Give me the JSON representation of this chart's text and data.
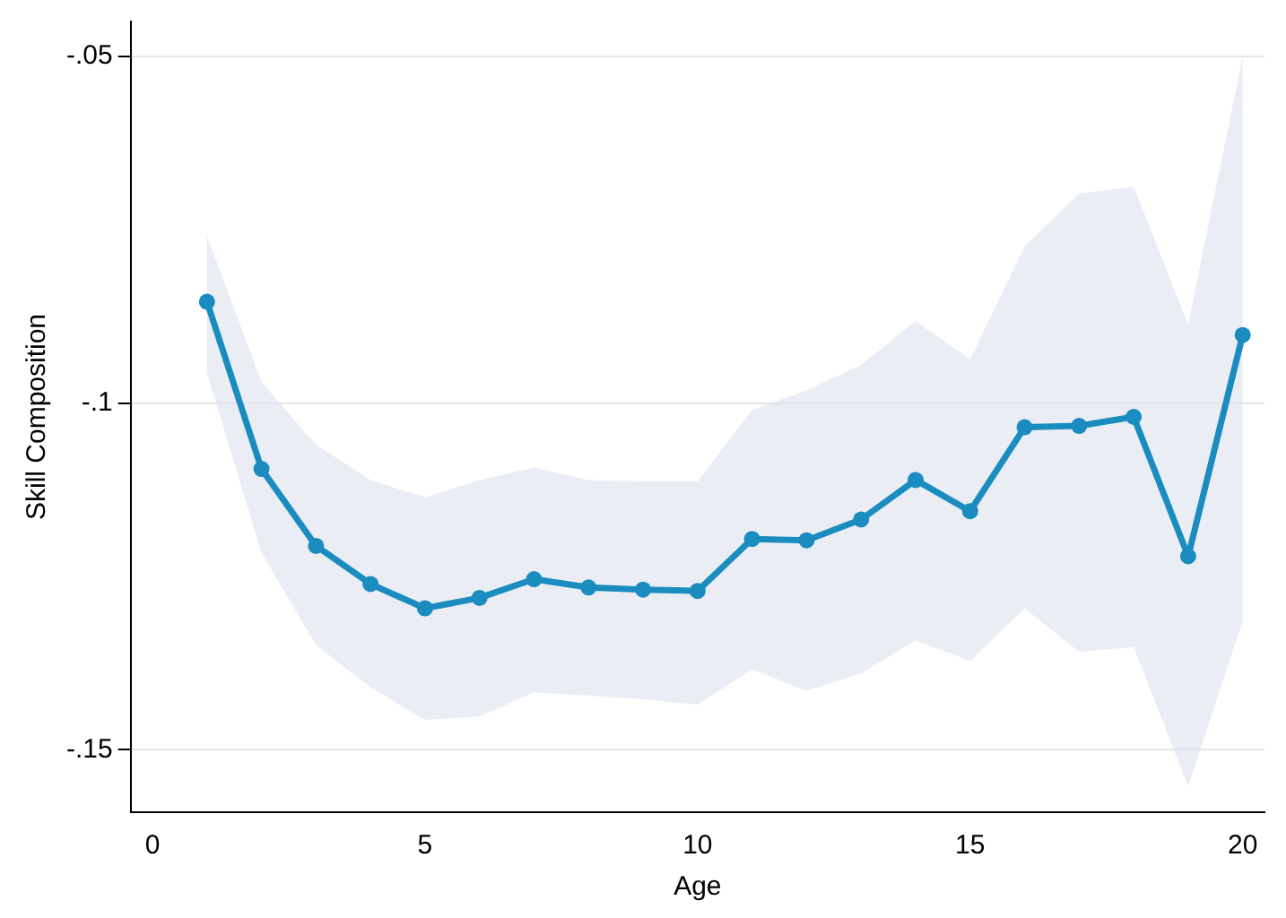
{
  "chart_data": {
    "type": "line",
    "xlabel": "Age",
    "ylabel": "Skill Composition",
    "x": [
      1,
      2,
      3,
      4,
      5,
      6,
      7,
      8,
      9,
      10,
      11,
      12,
      13,
      14,
      15,
      16,
      17,
      18,
      19,
      20
    ],
    "series": [
      {
        "color": "#1a8cc0",
        "values": [
          -0.0854,
          -0.1095,
          -0.1206,
          -0.1261,
          -0.1296,
          -0.1281,
          -0.1254,
          -0.1266,
          -0.1269,
          -0.1271,
          -0.1196,
          -0.1198,
          -0.1168,
          -0.1111,
          -0.1156,
          -0.1035,
          -0.1033,
          -0.102,
          -0.1221,
          -0.0902
        ],
        "upper": [
          -0.0759,
          -0.097,
          -0.106,
          -0.1111,
          -0.1136,
          -0.1111,
          -0.1093,
          -0.1111,
          -0.1113,
          -0.1113,
          -0.101,
          -0.0982,
          -0.0945,
          -0.0882,
          -0.0937,
          -0.0774,
          -0.0698,
          -0.0688,
          -0.0887,
          -0.05
        ],
        "lower": [
          -0.0957,
          -0.1216,
          -0.1349,
          -0.141,
          -0.1457,
          -0.1452,
          -0.1417,
          -0.1422,
          -0.1427,
          -0.1435,
          -0.1384,
          -0.1415,
          -0.139,
          -0.1342,
          -0.1372,
          -0.1296,
          -0.1359,
          -0.1352,
          -0.1553,
          -0.1314
        ]
      }
    ],
    "xlim": [
      -0.4,
      20.4
    ],
    "xticks": [
      0,
      5,
      10,
      15,
      20
    ],
    "ylim": [
      -0.159,
      -0.045
    ],
    "yticks": [
      {
        "value": -0.05,
        "label": "-.05"
      },
      {
        "value": -0.1,
        "label": "-.1"
      },
      {
        "value": -0.15,
        "label": "-.15"
      }
    ],
    "grid": "y",
    "marker": "circle",
    "line_style": "solid",
    "legend": false
  }
}
